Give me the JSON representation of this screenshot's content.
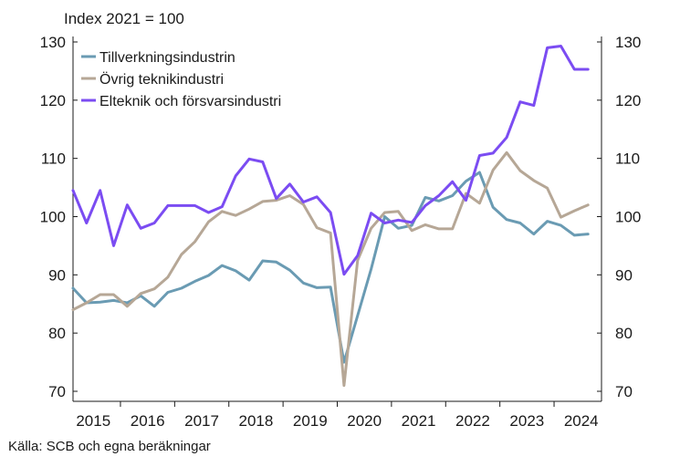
{
  "chart_data": {
    "type": "line",
    "unit_label": "Index 2021 = 100",
    "source": "Källa: SCB och egna beräkningar",
    "ylim": [
      70,
      130
    ],
    "yticks": [
      70,
      80,
      90,
      100,
      110,
      120,
      130
    ],
    "xlim": [
      2015.0,
      2024.75
    ],
    "year_labels": [
      "2015",
      "2016",
      "2017",
      "2018",
      "2019",
      "2020",
      "2021",
      "2022",
      "2023",
      "2024"
    ],
    "grid": false,
    "legend_position": "top-left",
    "x": [
      2015.0,
      2015.25,
      2015.5,
      2015.75,
      2016.0,
      2016.25,
      2016.5,
      2016.75,
      2017.0,
      2017.25,
      2017.5,
      2017.75,
      2018.0,
      2018.25,
      2018.5,
      2018.75,
      2019.0,
      2019.25,
      2019.5,
      2019.75,
      2020.0,
      2020.25,
      2020.5,
      2020.75,
      2021.0,
      2021.25,
      2021.5,
      2021.75,
      2022.0,
      2022.25,
      2022.5,
      2022.75,
      2023.0,
      2023.25,
      2023.5,
      2023.75,
      2024.0,
      2024.25,
      2024.5
    ],
    "series": [
      {
        "name": "Tillverkningsindustrin",
        "color": "#6a9bb3",
        "values": [
          87.7,
          85.2,
          85.3,
          85.6,
          85.2,
          86.4,
          84.6,
          87.0,
          87.7,
          88.9,
          89.9,
          91.6,
          90.7,
          89.1,
          92.4,
          92.2,
          90.8,
          88.6,
          87.8,
          87.9,
          75.0,
          83.0,
          91.0,
          100.0,
          98.0,
          98.5,
          103.3,
          102.7,
          103.6,
          106.1,
          107.6,
          101.6,
          99.5,
          98.9,
          97.0,
          99.2,
          98.5,
          96.8,
          97.0
        ]
      },
      {
        "name": "Övrig teknikindustri",
        "color": "#b6a796",
        "values": [
          84.0,
          85.2,
          86.6,
          86.6,
          84.6,
          86.8,
          87.6,
          89.6,
          93.5,
          95.7,
          99.1,
          100.9,
          100.2,
          101.3,
          102.6,
          102.8,
          103.6,
          102.1,
          98.1,
          97.2,
          71.0,
          92.5,
          98.0,
          100.7,
          100.9,
          97.6,
          98.6,
          97.9,
          97.9,
          104.0,
          102.3,
          108.0,
          111.0,
          107.9,
          106.2,
          104.9,
          99.9,
          101.0,
          102.0
        ]
      },
      {
        "name": "Elteknik och försvarsindustri",
        "color": "#7b4cf2",
        "values": [
          104.5,
          98.9,
          104.5,
          95.0,
          102.0,
          98.0,
          98.9,
          101.9,
          101.9,
          101.9,
          100.7,
          101.7,
          107.0,
          109.9,
          109.4,
          103.1,
          105.6,
          102.5,
          103.4,
          100.7,
          90.1,
          93.3,
          100.6,
          98.9,
          99.4,
          99.0,
          101.9,
          103.6,
          106.0,
          102.8,
          110.5,
          110.9,
          113.6,
          119.7,
          119.1,
          129.0,
          129.3,
          125.3,
          125.3
        ]
      }
    ]
  }
}
